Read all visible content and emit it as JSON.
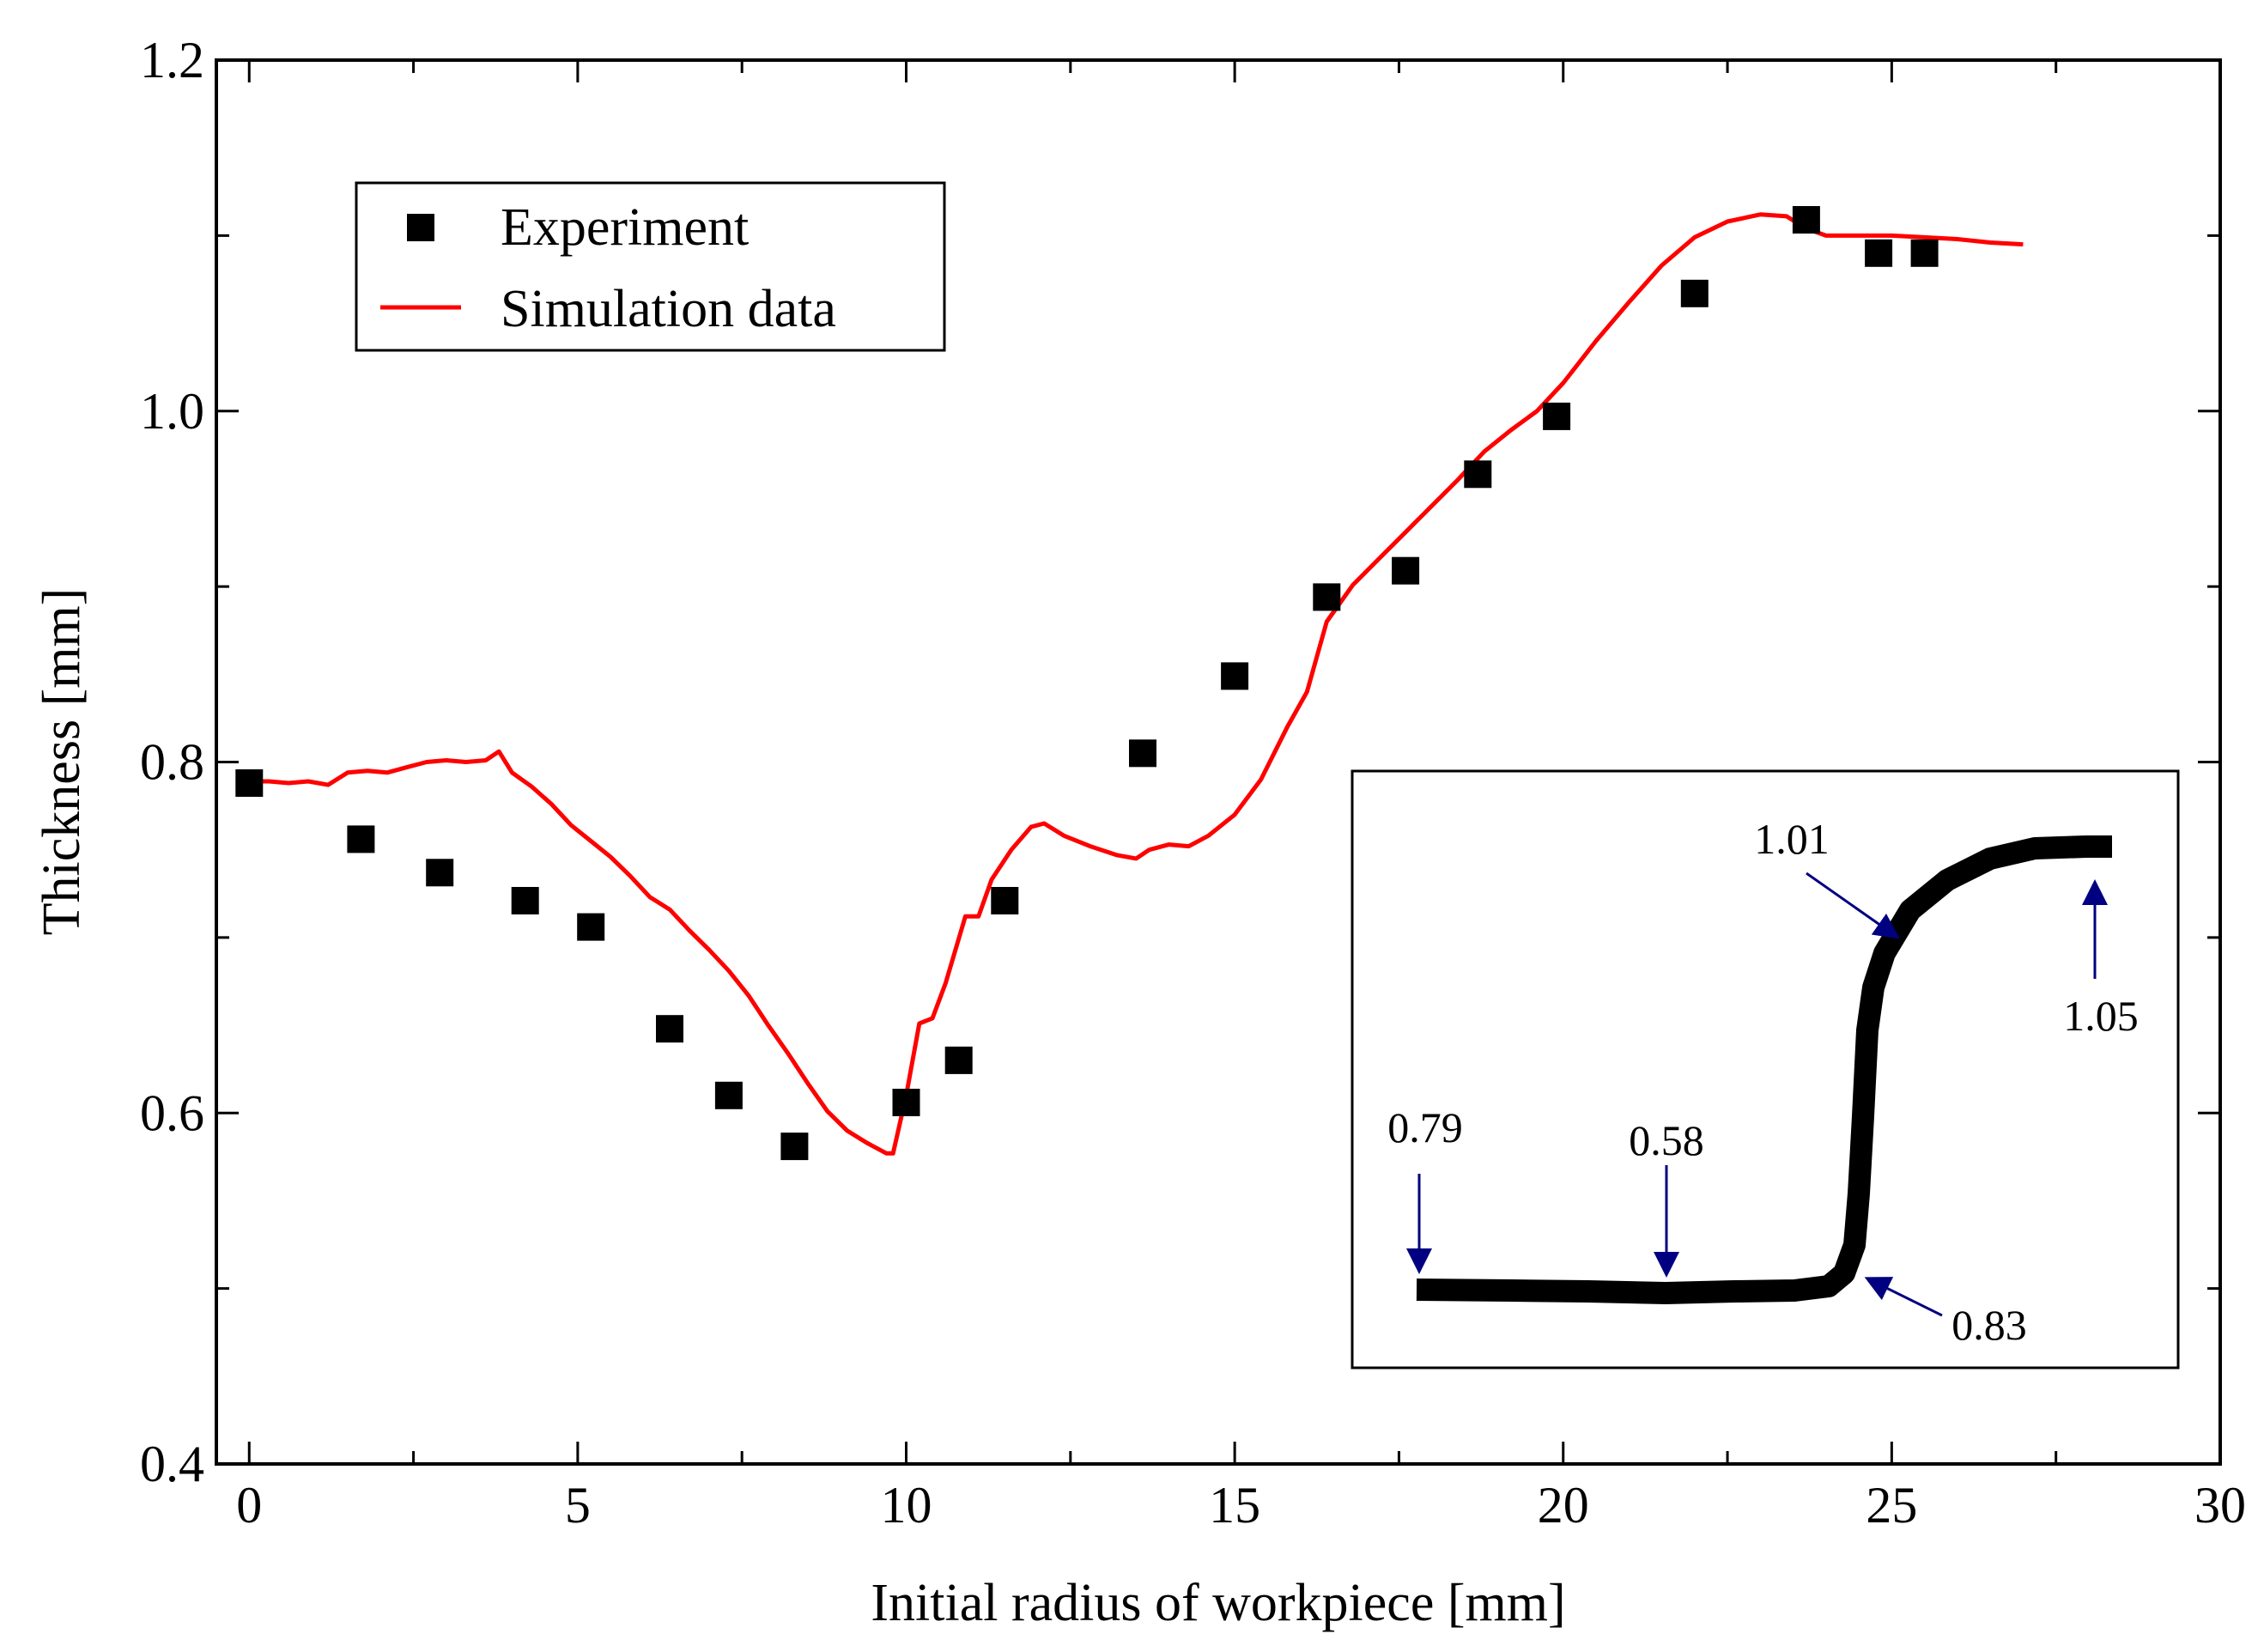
{
  "chart_data": {
    "type": "scatter",
    "title": "",
    "xlabel": "Initial radius of workpiece [mm]",
    "ylabel": "Thickness [mm]",
    "xlim": [
      -0.5,
      30
    ],
    "ylim": [
      0.4,
      1.2
    ],
    "xticks": [
      0,
      5,
      10,
      15,
      20,
      25,
      30
    ],
    "xtick_labels": [
      "0",
      "5",
      "10",
      "15",
      "20",
      "25",
      "30"
    ],
    "yticks": [
      0.4,
      0.6,
      0.8,
      1.0,
      1.2
    ],
    "ytick_labels": [
      "0.4",
      "0.6",
      "0.8",
      "1.0",
      "1.2"
    ],
    "legend": {
      "position": "top-left",
      "entries": [
        {
          "label": "Experiment",
          "marker": "square",
          "color": "#000000"
        },
        {
          "label": "Simulation data",
          "marker": "line",
          "color": "#ff0000"
        }
      ]
    },
    "series": [
      {
        "name": "Experiment",
        "type": "scatter",
        "color": "#000000",
        "x": [
          0.0,
          1.7,
          2.9,
          4.2,
          5.2,
          6.4,
          7.3,
          8.3,
          10.0,
          10.8,
          11.5,
          13.6,
          15.0,
          16.4,
          17.6,
          18.7,
          19.9,
          22.0,
          23.7,
          24.8,
          25.5
        ],
        "y": [
          0.788,
          0.756,
          0.737,
          0.721,
          0.706,
          0.648,
          0.61,
          0.581,
          0.606,
          0.63,
          0.721,
          0.805,
          0.849,
          0.894,
          0.909,
          0.964,
          0.997,
          1.067,
          1.109,
          1.09,
          1.09
        ]
      },
      {
        "name": "Simulation data",
        "type": "line",
        "color": "#ff0000",
        "x": [
          0.0,
          0.3,
          0.6,
          0.9,
          1.2,
          1.5,
          1.8,
          2.1,
          2.4,
          2.7,
          3.0,
          3.3,
          3.6,
          3.8,
          4.0,
          4.3,
          4.6,
          4.9,
          5.2,
          5.5,
          5.8,
          6.1,
          6.4,
          6.7,
          7.0,
          7.3,
          7.6,
          7.9,
          8.2,
          8.5,
          8.8,
          9.1,
          9.4,
          9.7,
          9.8,
          10.0,
          10.2,
          10.4,
          10.6,
          10.9,
          11.1,
          11.3,
          11.6,
          11.9,
          12.1,
          12.4,
          12.8,
          13.2,
          13.5,
          13.7,
          14.0,
          14.3,
          14.6,
          15.0,
          15.4,
          15.8,
          16.1,
          16.4,
          16.8,
          17.2,
          17.6,
          18.0,
          18.4,
          18.8,
          19.2,
          19.6,
          20.0,
          20.5,
          21.0,
          21.5,
          22.0,
          22.5,
          23.0,
          23.4,
          23.7,
          24.0,
          24.5,
          25.0,
          25.5,
          26.0,
          26.5,
          27.0
        ],
        "y": [
          0.789,
          0.789,
          0.788,
          0.789,
          0.787,
          0.794,
          0.795,
          0.794,
          0.797,
          0.8,
          0.801,
          0.8,
          0.801,
          0.806,
          0.794,
          0.786,
          0.776,
          0.764,
          0.755,
          0.746,
          0.735,
          0.723,
          0.716,
          0.704,
          0.693,
          0.681,
          0.667,
          0.65,
          0.634,
          0.617,
          0.601,
          0.59,
          0.583,
          0.577,
          0.577,
          0.61,
          0.651,
          0.654,
          0.674,
          0.712,
          0.712,
          0.733,
          0.75,
          0.763,
          0.765,
          0.758,
          0.752,
          0.747,
          0.745,
          0.75,
          0.753,
          0.752,
          0.758,
          0.77,
          0.79,
          0.82,
          0.84,
          0.88,
          0.901,
          0.916,
          0.931,
          0.946,
          0.961,
          0.977,
          0.989,
          1.0,
          1.016,
          1.04,
          1.062,
          1.083,
          1.099,
          1.108,
          1.112,
          1.111,
          1.104,
          1.1,
          1.1,
          1.1,
          1.099,
          1.098,
          1.096,
          1.095
        ]
      }
    ],
    "inset": {
      "annotations": [
        {
          "label": "0.79"
        },
        {
          "label": "0.58"
        },
        {
          "label": "0.83"
        },
        {
          "label": "1.01"
        },
        {
          "label": "1.05"
        }
      ],
      "arrow_color": "#000080"
    }
  }
}
